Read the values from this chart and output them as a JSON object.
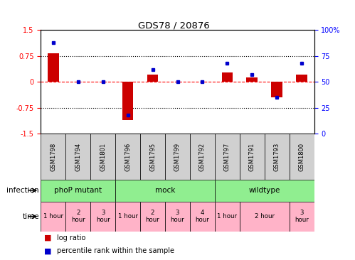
{
  "title": "GDS78 / 20876",
  "samples": [
    "GSM1798",
    "GSM1794",
    "GSM1801",
    "GSM1796",
    "GSM1795",
    "GSM1799",
    "GSM1792",
    "GSM1797",
    "GSM1791",
    "GSM1793",
    "GSM1800"
  ],
  "log_ratio": [
    0.82,
    0.0,
    0.0,
    -1.1,
    0.22,
    0.0,
    0.0,
    0.28,
    0.12,
    -0.45,
    0.22
  ],
  "percentile": [
    88,
    50,
    50,
    18,
    62,
    50,
    50,
    68,
    57,
    35,
    68
  ],
  "ylim_left": [
    -1.5,
    1.5
  ],
  "ylim_right": [
    0,
    100
  ],
  "yticks_left": [
    -1.5,
    -0.75,
    0,
    0.75,
    1.5
  ],
  "yticks_right": [
    0,
    25,
    50,
    75,
    100
  ],
  "ytick_labels_left": [
    "-1.5",
    "-0.75",
    "0",
    "0.75",
    "1.5"
  ],
  "ytick_labels_right": [
    "0",
    "25",
    "50",
    "75",
    "100%"
  ],
  "bar_color": "#cc0000",
  "dot_color": "#0000cc",
  "plot_bg": "#ffffff",
  "inf_color": "#90EE90",
  "time_color": "#FFB3C8",
  "sample_box_color": "#d0d0d0",
  "label_infection": "infection",
  "label_time": "time",
  "legend_log": "log ratio",
  "legend_pct": "percentile rank within the sample",
  "inf_groups": [
    {
      "label": "phoP mutant",
      "span": [
        0,
        3
      ]
    },
    {
      "label": "mock",
      "span": [
        3,
        7
      ]
    },
    {
      "label": "wildtype",
      "span": [
        7,
        11
      ]
    }
  ],
  "time_entries": [
    {
      "span": [
        0,
        1
      ],
      "label": "1 hour"
    },
    {
      "span": [
        1,
        2
      ],
      "label": "2\nhour"
    },
    {
      "span": [
        2,
        3
      ],
      "label": "3\nhour"
    },
    {
      "span": [
        3,
        4
      ],
      "label": "1 hour"
    },
    {
      "span": [
        4,
        5
      ],
      "label": "2\nhour"
    },
    {
      "span": [
        5,
        6
      ],
      "label": "3\nhour"
    },
    {
      "span": [
        6,
        7
      ],
      "label": "4\nhour"
    },
    {
      "span": [
        7,
        8
      ],
      "label": "1 hour"
    },
    {
      "span": [
        8,
        10
      ],
      "label": "2 hour"
    },
    {
      "span": [
        10,
        11
      ],
      "label": "3\nhour"
    }
  ]
}
